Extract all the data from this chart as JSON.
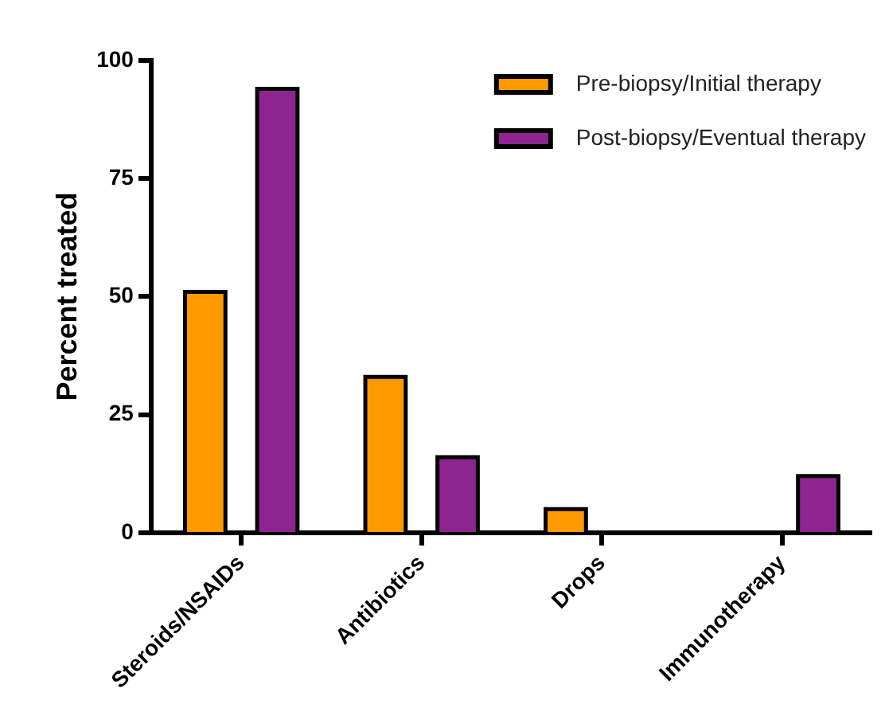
{
  "chart_data": {
    "type": "bar",
    "ylabel": "Percent treated",
    "categories": [
      "Steroids/NSAIDs",
      "Antibiotics",
      "Drops",
      "Immunotherapy"
    ],
    "series": [
      {
        "name": "Pre-biopsy/Initial therapy",
        "color": "#ff9900",
        "values": [
          51,
          33,
          5,
          0
        ]
      },
      {
        "name": "Post-biopsy/Eventual therapy",
        "color": "#8e2490",
        "values": [
          94,
          16,
          0,
          12
        ]
      }
    ],
    "ylim": [
      0,
      100
    ],
    "yticks": [
      0,
      25,
      50,
      75,
      100
    ],
    "grid": false,
    "legend": "top right"
  }
}
